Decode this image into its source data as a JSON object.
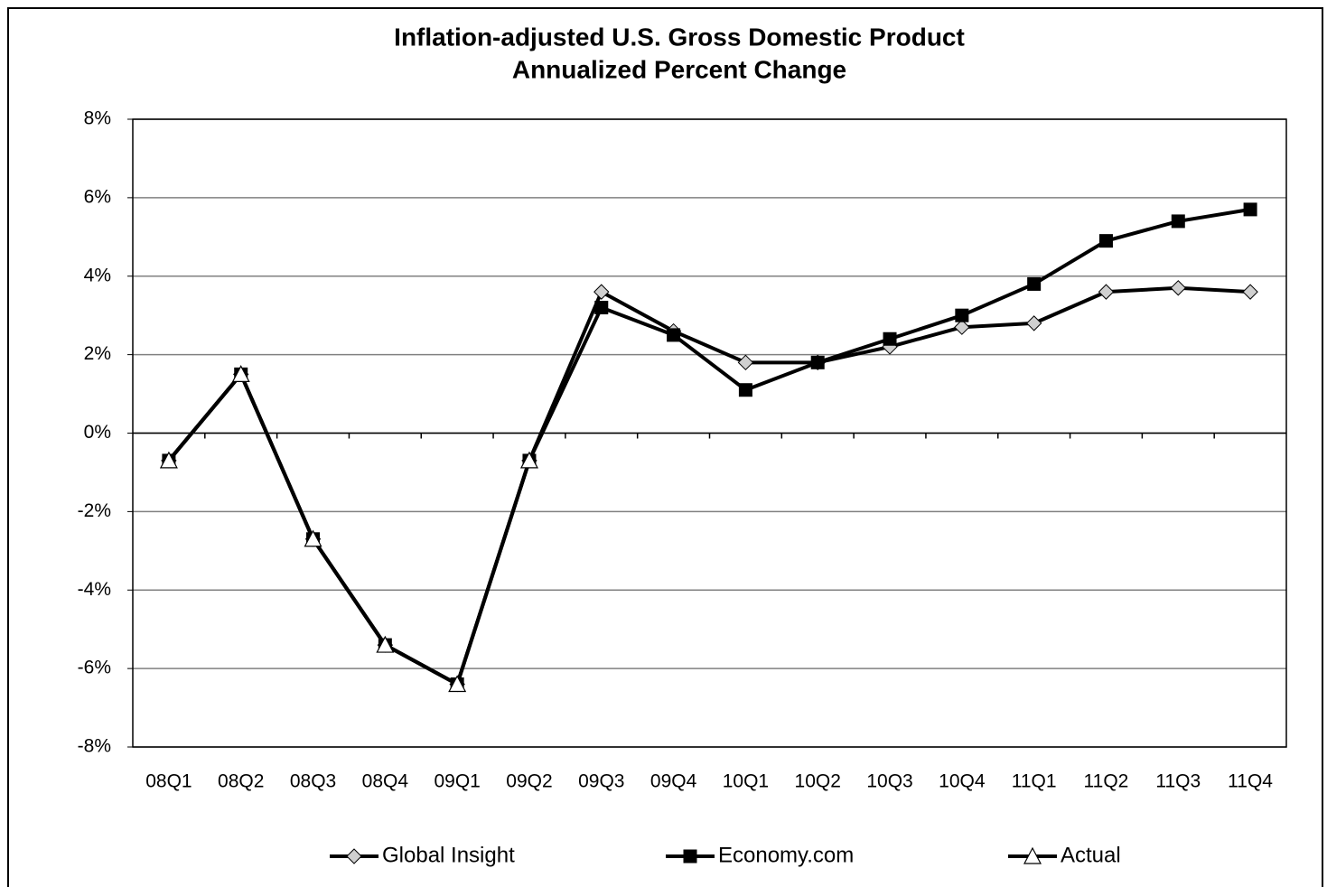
{
  "chart_data": {
    "type": "line",
    "title": "Inflation-adjusted U.S. Gross Domestic Product",
    "subtitle": "Annualized Percent Change",
    "categories": [
      "08Q1",
      "08Q2",
      "08Q3",
      "08Q4",
      "09Q1",
      "09Q2",
      "09Q3",
      "09Q4",
      "10Q1",
      "10Q2",
      "10Q3",
      "10Q4",
      "11Q1",
      "11Q2",
      "11Q3",
      "11Q4"
    ],
    "series": [
      {
        "name": "Global Insight",
        "color": "#000000",
        "marker": "diamond",
        "marker_color": "#d0d0d0",
        "values": [
          -0.7,
          1.5,
          -2.7,
          -5.4,
          -6.4,
          -0.7,
          3.6,
          2.6,
          1.8,
          1.8,
          2.2,
          2.7,
          2.8,
          3.6,
          3.7,
          3.6
        ]
      },
      {
        "name": "Economy.com",
        "color": "#000000",
        "marker": "square",
        "marker_color": "#000000",
        "values": [
          -0.7,
          1.5,
          -2.7,
          -5.4,
          -6.4,
          -0.7,
          3.2,
          2.5,
          1.1,
          1.8,
          2.4,
          3.0,
          3.8,
          4.9,
          5.4,
          5.7
        ]
      },
      {
        "name": "Actual",
        "color": "#000000",
        "marker": "triangle",
        "marker_color": "#ffffff",
        "values": [
          -0.7,
          1.5,
          -2.7,
          -5.4,
          -6.4,
          -0.7,
          null,
          null,
          null,
          null,
          null,
          null,
          null,
          null,
          null,
          null
        ]
      }
    ],
    "ylim": [
      -8,
      8
    ],
    "yticks": [
      {
        "value": -8,
        "label": "-8%"
      },
      {
        "value": -6,
        "label": "-6%"
      },
      {
        "value": -4,
        "label": "-4%"
      },
      {
        "value": -2,
        "label": "-2%"
      },
      {
        "value": 0,
        "label": "0%"
      },
      {
        "value": 2,
        "label": "2%"
      },
      {
        "value": 4,
        "label": "4%"
      },
      {
        "value": 6,
        "label": "6%"
      },
      {
        "value": 8,
        "label": "8%"
      }
    ],
    "grid": true,
    "legend": "bottom"
  }
}
